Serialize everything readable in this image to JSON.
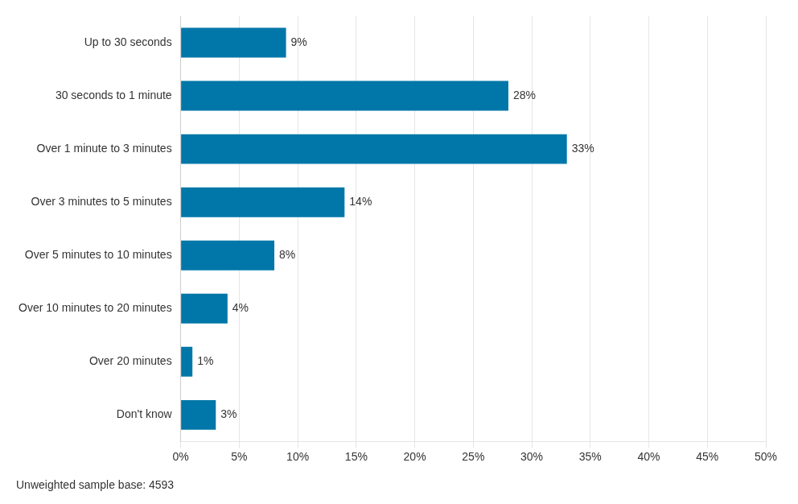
{
  "chart_data": {
    "type": "bar",
    "orientation": "horizontal",
    "categories": [
      "Up to 30 seconds",
      "30 seconds to 1 minute",
      "Over 1 minute to 3 minutes",
      "Over 3 minutes to 5 minutes",
      "Over 5 minutes to 10 minutes",
      "Over 10 minutes to 20 minutes",
      "Over 20 minutes",
      "Don't know"
    ],
    "values": [
      9,
      28,
      33,
      14,
      8,
      4,
      1,
      3
    ],
    "value_labels": [
      "9%",
      "28%",
      "33%",
      "14%",
      "8%",
      "4%",
      "1%",
      "3%"
    ],
    "data_labels": true,
    "color": "#0077a8",
    "xlim": [
      0,
      50
    ],
    "xticks": [
      {
        "value": 0,
        "label": "0%"
      },
      {
        "value": 5,
        "label": "5%"
      },
      {
        "value": 10,
        "label": "10%"
      },
      {
        "value": 15,
        "label": "15%"
      },
      {
        "value": 20,
        "label": "20%"
      },
      {
        "value": 25,
        "label": "25%"
      },
      {
        "value": 30,
        "label": "30%"
      },
      {
        "value": 35,
        "label": "35%"
      },
      {
        "value": 40,
        "label": "40%"
      },
      {
        "value": 45,
        "label": "45%"
      },
      {
        "value": 50,
        "label": "50%"
      }
    ],
    "grid": true,
    "annotations": [
      "Unweighted sample base: 4593"
    ]
  }
}
